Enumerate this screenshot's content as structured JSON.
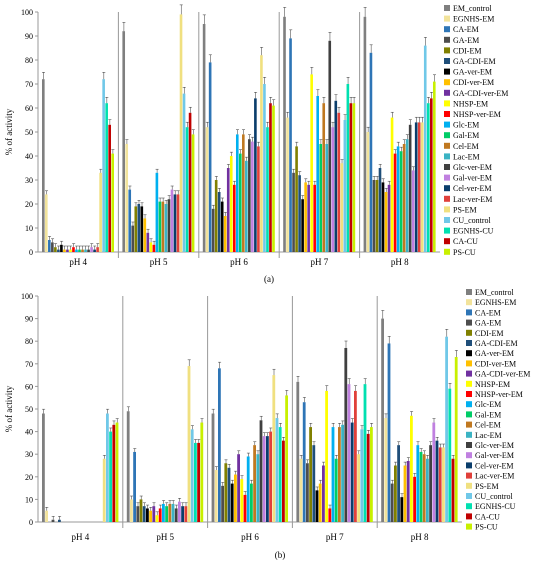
{
  "series_names": [
    "EM_control",
    "EGNHS-EM",
    "CA-EM",
    "GA-EM",
    "CDI-EM",
    "GA-CDI-EM",
    "GA-ver-EM",
    "CDI-ver-EM",
    "GA-CDI-ver-EM",
    "NHSP-EM",
    "NHSP-ver-EM",
    "Glc-EM",
    "Gal-EM",
    "Cel-EM",
    "Lac-EM",
    "Glc-ver-EM",
    "Gal-ver-EM",
    "Cel-ver-EM",
    "Lac-ver-EM",
    "PS-EM",
    "CU_control",
    "EGNHS-CU",
    "CA-CU",
    "PS-CU"
  ],
  "colors": [
    "#7f7f7f",
    "#f2e39b",
    "#2e75b6",
    "#4d4d4d",
    "#808000",
    "#1f4e79",
    "#000000",
    "#ffc000",
    "#7030a0",
    "#ffff00",
    "#ff0000",
    "#00b0f0",
    "#00cc66",
    "#c07820",
    "#3bb3c3",
    "#404040",
    "#c080e0",
    "#0a3d6b",
    "#e0403a",
    "#f0e080",
    "#70c8e8",
    "#00e0b0",
    "#c00000",
    "#c8f000"
  ],
  "chart_data": [
    {
      "type": "bar",
      "caption": "(a)",
      "ylabel": "% of activity",
      "ylim": [
        0,
        100
      ],
      "yticks": [
        0,
        10,
        20,
        30,
        40,
        50,
        60,
        70,
        80,
        90,
        100
      ],
      "categories": [
        "pH 4",
        "pH 5",
        "pH 6",
        "pH 7",
        "pH 8"
      ],
      "series": [
        {
          "name": "EM_control",
          "values": [
            72,
            92,
            95,
            98,
            98
          ]
        },
        {
          "name": "EGNHS-EM",
          "values": [
            24,
            45,
            52,
            56,
            50
          ]
        },
        {
          "name": "CA-EM",
          "values": [
            5,
            26,
            79,
            89,
            83
          ]
        },
        {
          "name": "GA-EM",
          "values": [
            4,
            11,
            18,
            33,
            30
          ]
        },
        {
          "name": "CDI-EM",
          "values": [
            2,
            19,
            30,
            44,
            30
          ]
        },
        {
          "name": "GA-CDI-EM",
          "values": [
            1,
            20,
            25,
            32,
            35
          ]
        },
        {
          "name": "GA-ver-EM",
          "values": [
            3,
            19,
            21,
            22,
            29
          ]
        },
        {
          "name": "CDI-ver-EM",
          "values": [
            1,
            14,
            15,
            29,
            25
          ]
        },
        {
          "name": "GA-CDI-ver-EM",
          "values": [
            1,
            8,
            35,
            28,
            28
          ]
        },
        {
          "name": "NHSP-EM",
          "values": [
            1,
            4,
            40,
            74,
            56
          ]
        },
        {
          "name": "NHSP-ver-EM",
          "values": [
            2,
            3,
            28,
            28,
            41
          ]
        },
        {
          "name": "Glc-EM",
          "values": [
            1,
            33,
            49,
            65,
            44
          ]
        },
        {
          "name": "Gal-EM",
          "values": [
            1,
            21,
            41,
            45,
            42
          ]
        },
        {
          "name": "Cel-EM",
          "values": [
            1,
            21,
            49,
            62,
            45
          ]
        },
        {
          "name": "Lac-EM",
          "values": [
            1,
            20,
            38,
            45,
            47
          ]
        },
        {
          "name": "Glc-ver-EM",
          "values": [
            1,
            22,
            47,
            88,
            53
          ]
        },
        {
          "name": "Gal-ver-EM",
          "values": [
            2,
            26,
            46,
            52,
            34
          ]
        },
        {
          "name": "Cel-ver-EM",
          "values": [
            1,
            24,
            64,
            63,
            54
          ]
        },
        {
          "name": "Lac-ver-EM",
          "values": [
            2,
            24,
            44,
            58,
            54
          ]
        },
        {
          "name": "PS-EM",
          "values": [
            33,
            99,
            82,
            37,
            54
          ]
        },
        {
          "name": "CU_control",
          "values": [
            72,
            66,
            70,
            55,
            86
          ]
        },
        {
          "name": "EGNHS-CU",
          "values": [
            62,
            52,
            52,
            70,
            62
          ]
        },
        {
          "name": "CA-CU",
          "values": [
            53,
            58,
            62,
            62,
            64
          ]
        },
        {
          "name": "PS-CU",
          "values": [
            41,
            49,
            61,
            62,
            71
          ]
        }
      ]
    },
    {
      "type": "bar",
      "caption": "(b)",
      "ylabel": "% of activity",
      "ylim": [
        0,
        100
      ],
      "yticks": [
        0,
        10,
        20,
        30,
        40,
        50,
        60,
        70,
        80,
        90,
        100
      ],
      "categories": [
        "pH 4",
        "pH 5",
        "pH 6",
        "pH 7",
        "pH 8"
      ],
      "series": [
        {
          "name": "EM_control",
          "values": [
            48,
            49,
            48,
            62,
            90
          ]
        },
        {
          "name": "EGNHS-EM",
          "values": [
            5,
            10,
            23,
            28,
            46
          ]
        },
        {
          "name": "CA-EM",
          "values": [
            0,
            31,
            68,
            53,
            79
          ]
        },
        {
          "name": "GA-EM",
          "values": [
            1,
            7,
            16,
            26,
            17
          ]
        },
        {
          "name": "CDI-EM",
          "values": [
            0,
            10,
            26,
            42,
            25
          ]
        },
        {
          "name": "GA-CDI-EM",
          "values": [
            1,
            7,
            24,
            34,
            34
          ]
        },
        {
          "name": "GA-ver-EM",
          "values": [
            0,
            6,
            17,
            14,
            11
          ]
        },
        {
          "name": "CDI-ver-EM",
          "values": [
            0,
            5,
            21,
            17,
            25
          ]
        },
        {
          "name": "GA-CDI-ver-EM",
          "values": [
            0,
            7,
            30,
            25,
            27
          ]
        },
        {
          "name": "NHSP-EM",
          "values": [
            0,
            3,
            19,
            58,
            47
          ]
        },
        {
          "name": "NHSP-ver-EM",
          "values": [
            0,
            6,
            12,
            6,
            20
          ]
        },
        {
          "name": "Glc-EM",
          "values": [
            0,
            8,
            29,
            42,
            34
          ]
        },
        {
          "name": "Gal-EM",
          "values": [
            0,
            7,
            17,
            28,
            31
          ]
        },
        {
          "name": "Cel-EM",
          "values": [
            0,
            8,
            34,
            42,
            30
          ]
        },
        {
          "name": "Lac-EM",
          "values": [
            0,
            8,
            30,
            43,
            28
          ]
        },
        {
          "name": "Glc-ver-EM",
          "values": [
            0,
            6,
            45,
            77,
            34
          ]
        },
        {
          "name": "Gal-ver-EM",
          "values": [
            0,
            9,
            38,
            61,
            44
          ]
        },
        {
          "name": "Cel-ver-EM",
          "values": [
            0,
            7,
            38,
            44,
            36
          ]
        },
        {
          "name": "Lac-ver-EM",
          "values": [
            0,
            7,
            40,
            58,
            33
          ]
        },
        {
          "name": "PS-EM",
          "values": [
            28,
            69,
            65,
            30,
            33
          ]
        },
        {
          "name": "CU_control",
          "values": [
            48,
            41,
            46,
            41,
            82
          ]
        },
        {
          "name": "EGNHS-CU",
          "values": [
            40,
            35,
            42,
            61,
            59
          ]
        },
        {
          "name": "CA-CU",
          "values": [
            43,
            35,
            36,
            39,
            28
          ]
        },
        {
          "name": "PS-CU",
          "values": [
            44,
            44,
            56,
            42,
            73
          ]
        }
      ]
    }
  ]
}
